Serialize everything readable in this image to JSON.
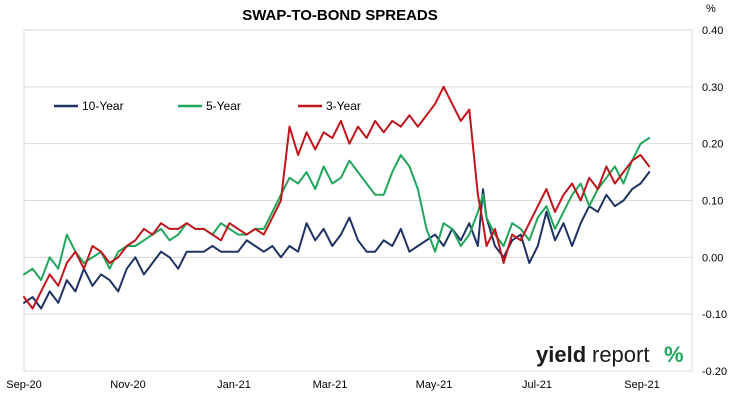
{
  "chart_data": {
    "type": "line",
    "title": "SWAP-TO-BOND SPREADS",
    "y_unit": "%",
    "ylim": [
      -0.2,
      0.4
    ],
    "y_ticks": [
      "-0.20",
      "-0.10",
      "0.00",
      "0.10",
      "0.20",
      "0.30",
      "0.40"
    ],
    "y_tick_values": [
      -0.2,
      -0.1,
      0.0,
      0.1,
      0.2,
      0.3,
      0.4
    ],
    "x_ticks": [
      "Sep-20",
      "Nov-20",
      "Jan-21",
      "Mar-21",
      "May-21",
      "Jul-21",
      "Sep-21"
    ],
    "grid": {
      "horizontal": true,
      "vertical": false
    },
    "legend_position": "top-left",
    "brand": {
      "part1": "yield",
      "part2": "report",
      "symbol": "%"
    },
    "series": [
      {
        "name": "10-Year",
        "color": "#1f3264",
        "x": [
          0,
          5,
          10,
          15,
          20,
          25,
          30,
          35,
          40,
          45,
          50,
          55,
          60,
          65,
          70,
          75,
          80,
          85,
          90,
          95,
          100,
          105,
          110,
          115,
          120,
          125,
          130,
          135,
          140,
          145,
          150,
          155,
          160,
          165,
          170,
          175,
          180,
          185,
          190,
          195,
          200,
          205,
          210,
          215,
          220,
          225,
          230,
          235,
          240,
          245,
          250,
          255,
          260,
          265,
          268,
          270,
          275,
          280,
          285,
          290,
          295,
          300,
          305,
          310,
          315,
          320,
          325,
          330,
          335,
          340,
          345,
          350,
          355,
          360,
          365
        ],
        "y": [
          -0.08,
          -0.07,
          -0.09,
          -0.06,
          -0.08,
          -0.04,
          -0.06,
          -0.02,
          -0.05,
          -0.03,
          -0.04,
          -0.06,
          -0.02,
          0.0,
          -0.03,
          -0.01,
          0.01,
          0.0,
          -0.02,
          0.01,
          0.01,
          0.01,
          0.02,
          0.01,
          0.01,
          0.01,
          0.03,
          0.02,
          0.01,
          0.02,
          0.0,
          0.02,
          0.01,
          0.06,
          0.03,
          0.05,
          0.02,
          0.04,
          0.07,
          0.03,
          0.01,
          0.01,
          0.03,
          0.02,
          0.05,
          0.01,
          0.02,
          0.03,
          0.04,
          0.02,
          0.05,
          0.03,
          0.06,
          0.02,
          0.12,
          0.07,
          0.02,
          0.0,
          0.03,
          0.04,
          -0.01,
          0.02,
          0.08,
          0.03,
          0.06,
          0.02,
          0.06,
          0.09,
          0.08,
          0.11,
          0.09,
          0.1,
          0.12,
          0.13,
          0.15
        ]
      },
      {
        "name": "5-Year",
        "color": "#1fa65a",
        "x": [
          0,
          5,
          10,
          15,
          20,
          25,
          30,
          35,
          40,
          45,
          50,
          55,
          60,
          65,
          70,
          75,
          80,
          85,
          90,
          95,
          100,
          105,
          110,
          115,
          120,
          125,
          130,
          135,
          140,
          145,
          150,
          155,
          160,
          165,
          170,
          175,
          180,
          185,
          190,
          195,
          200,
          205,
          210,
          215,
          220,
          225,
          230,
          235,
          240,
          245,
          250,
          255,
          260,
          265,
          268,
          270,
          275,
          280,
          285,
          290,
          295,
          300,
          305,
          310,
          315,
          320,
          325,
          330,
          335,
          340,
          345,
          350,
          355,
          360,
          365
        ],
        "y": [
          -0.03,
          -0.02,
          -0.04,
          0.0,
          -0.02,
          0.04,
          0.01,
          -0.01,
          0.0,
          0.01,
          -0.02,
          0.01,
          0.02,
          0.02,
          0.03,
          0.04,
          0.05,
          0.03,
          0.04,
          0.06,
          0.05,
          0.05,
          0.04,
          0.06,
          0.05,
          0.04,
          0.04,
          0.05,
          0.05,
          0.08,
          0.11,
          0.14,
          0.13,
          0.15,
          0.12,
          0.16,
          0.13,
          0.14,
          0.17,
          0.15,
          0.13,
          0.11,
          0.11,
          0.15,
          0.18,
          0.16,
          0.12,
          0.05,
          0.01,
          0.06,
          0.05,
          0.02,
          0.04,
          0.08,
          0.11,
          0.07,
          0.04,
          0.02,
          0.06,
          0.05,
          0.03,
          0.07,
          0.09,
          0.05,
          0.08,
          0.11,
          0.13,
          0.09,
          0.12,
          0.14,
          0.16,
          0.13,
          0.17,
          0.2,
          0.21
        ]
      },
      {
        "name": "3-Year",
        "color": "#c0151b",
        "x": [
          0,
          5,
          10,
          15,
          20,
          25,
          30,
          35,
          40,
          45,
          50,
          55,
          60,
          65,
          70,
          75,
          80,
          85,
          90,
          95,
          100,
          105,
          110,
          115,
          120,
          125,
          130,
          135,
          140,
          145,
          150,
          155,
          160,
          165,
          170,
          175,
          180,
          185,
          190,
          195,
          200,
          205,
          210,
          215,
          220,
          225,
          230,
          235,
          240,
          245,
          250,
          255,
          260,
          265,
          268,
          270,
          275,
          280,
          285,
          290,
          295,
          300,
          305,
          310,
          315,
          320,
          325,
          330,
          335,
          340,
          345,
          350,
          355,
          360,
          365
        ],
        "y": [
          -0.07,
          -0.09,
          -0.06,
          -0.03,
          -0.05,
          -0.01,
          0.01,
          -0.02,
          0.02,
          0.01,
          -0.01,
          0.0,
          0.02,
          0.03,
          0.05,
          0.04,
          0.06,
          0.05,
          0.05,
          0.06,
          0.05,
          0.05,
          0.04,
          0.03,
          0.06,
          0.05,
          0.04,
          0.05,
          0.04,
          0.07,
          0.1,
          0.23,
          0.18,
          0.22,
          0.19,
          0.22,
          0.21,
          0.24,
          0.2,
          0.23,
          0.21,
          0.24,
          0.22,
          0.24,
          0.23,
          0.25,
          0.23,
          0.25,
          0.27,
          0.3,
          0.27,
          0.24,
          0.26,
          0.11,
          0.06,
          0.02,
          0.05,
          -0.01,
          0.04,
          0.03,
          0.06,
          0.09,
          0.12,
          0.08,
          0.11,
          0.13,
          0.1,
          0.14,
          0.12,
          0.16,
          0.13,
          0.15,
          0.17,
          0.18,
          0.16
        ]
      }
    ]
  }
}
